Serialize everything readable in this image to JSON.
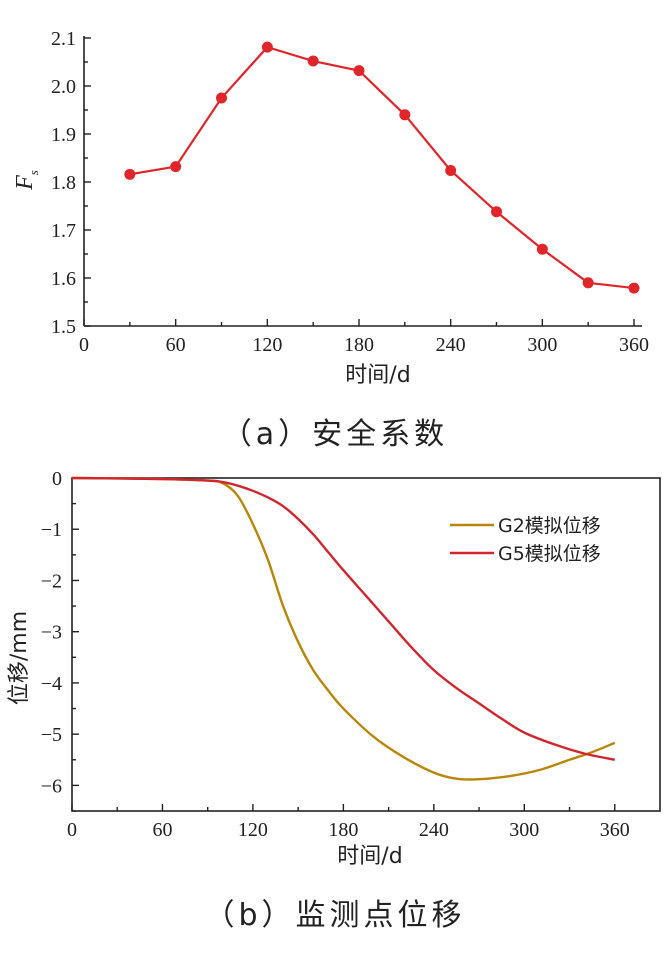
{
  "chart_data": [
    {
      "type": "line",
      "caption": "（a）安全系数",
      "xlabel": "时间/d",
      "ylabel": "F",
      "ylabel_sub": "s",
      "xlim": [
        0,
        360
      ],
      "ylim": [
        1.5,
        2.1
      ],
      "x_ticks": [
        0,
        60,
        120,
        180,
        240,
        300,
        360
      ],
      "y_ticks": [
        1.5,
        1.6,
        1.7,
        1.8,
        1.9,
        2.0,
        2.1
      ],
      "y_tick_labels": [
        "1.5",
        "1.6",
        "1.7",
        "1.8",
        "1.9",
        "2.0",
        "2.1"
      ],
      "series": [
        {
          "color": "#e0262a",
          "x": [
            30,
            60,
            90,
            120,
            150,
            180,
            210,
            240,
            270,
            300,
            330,
            360
          ],
          "y": [
            1.816,
            1.832,
            1.975,
            2.081,
            2.052,
            2.032,
            1.94,
            1.824,
            1.738,
            1.66,
            1.59,
            1.579
          ]
        }
      ]
    },
    {
      "type": "line",
      "caption": "（b）监测点位移",
      "xlabel": "时间/d",
      "ylabel": "位移/mm",
      "xlim": [
        0,
        390
      ],
      "ylim": [
        -6.5,
        0
      ],
      "x_ticks": [
        0,
        60,
        120,
        180,
        240,
        300,
        360
      ],
      "y_ticks": [
        0,
        -1,
        -2,
        -3,
        -4,
        -5,
        -6
      ],
      "y_tick_labels": [
        "0",
        "−1",
        "−2",
        "−3",
        "−4",
        "−5",
        "−6"
      ],
      "legend_position": "top-right",
      "series": [
        {
          "name": "G2模拟位移",
          "color": "#b8860b",
          "x": [
            0,
            60,
            90,
            100,
            110,
            120,
            130,
            140,
            150,
            160,
            170,
            180,
            200,
            220,
            240,
            255,
            270,
            290,
            310,
            330,
            345,
            360
          ],
          "y": [
            0,
            -0.02,
            -0.05,
            -0.1,
            -0.35,
            -0.9,
            -1.6,
            -2.5,
            -3.2,
            -3.75,
            -4.15,
            -4.5,
            -5.05,
            -5.45,
            -5.75,
            -5.87,
            -5.88,
            -5.82,
            -5.7,
            -5.5,
            -5.35,
            -5.17
          ]
        },
        {
          "name": "G5模拟位移",
          "color": "#d1262e",
          "x": [
            0,
            60,
            90,
            100,
            110,
            120,
            130,
            140,
            150,
            160,
            170,
            180,
            195,
            210,
            225,
            240,
            255,
            270,
            285,
            300,
            320,
            340,
            360
          ],
          "y": [
            0,
            -0.02,
            -0.05,
            -0.08,
            -0.15,
            -0.25,
            -0.38,
            -0.55,
            -0.8,
            -1.1,
            -1.45,
            -1.8,
            -2.3,
            -2.8,
            -3.3,
            -3.75,
            -4.1,
            -4.4,
            -4.7,
            -4.97,
            -5.2,
            -5.38,
            -5.5
          ]
        }
      ]
    }
  ]
}
